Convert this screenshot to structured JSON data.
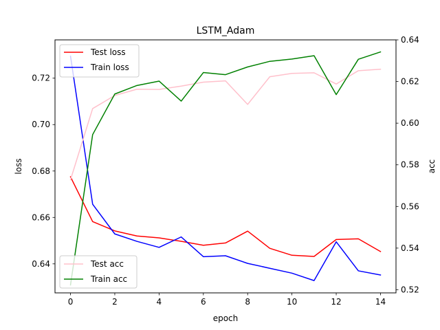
{
  "chart_data": {
    "type": "line",
    "title": "LSTM_Adam",
    "xlabel": "epoch",
    "ylabel": "loss",
    "y2label": "acc",
    "x": [
      0,
      1,
      2,
      3,
      4,
      5,
      6,
      7,
      8,
      9,
      10,
      11,
      12,
      13,
      14
    ],
    "xticks": [
      0,
      2,
      4,
      6,
      8,
      10,
      12,
      14
    ],
    "xticklabels": [
      "0",
      "2",
      "4",
      "6",
      "8",
      "10",
      "12",
      "14"
    ],
    "xlim": [
      -0.7,
      14.7
    ],
    "ylim": [
      0.6275,
      0.7365
    ],
    "yticks": [
      0.64,
      0.66,
      0.68,
      0.7,
      0.72
    ],
    "yticklabels": [
      "0.64",
      "0.66",
      "0.68",
      "0.70",
      "0.72"
    ],
    "y2lim": [
      0.5185,
      0.64
    ],
    "y2ticks": [
      0.52,
      0.54,
      0.56,
      0.58,
      0.6,
      0.62,
      0.64
    ],
    "y2ticklabels": [
      "0.52",
      "0.54",
      "0.56",
      "0.58",
      "0.60",
      "0.62",
      "0.64"
    ],
    "grid": false,
    "series": [
      {
        "name": "Test loss",
        "axis": "left",
        "color": "#ff0000",
        "values": [
          0.6775,
          0.6582,
          0.6542,
          0.652,
          0.6512,
          0.6497,
          0.648,
          0.649,
          0.6541,
          0.6467,
          0.6437,
          0.6432,
          0.6505,
          0.6508,
          0.6453
        ]
      },
      {
        "name": "Train loss",
        "axis": "left",
        "color": "#0000ff",
        "values": [
          0.7295,
          0.6657,
          0.6529,
          0.6497,
          0.6471,
          0.6516,
          0.6431,
          0.6435,
          0.6402,
          0.6381,
          0.636,
          0.6328,
          0.6495,
          0.637,
          0.6352
        ]
      },
      {
        "name": "Test acc",
        "axis": "right",
        "color": "#ffc0cb",
        "values": [
          0.5728,
          0.607,
          0.6133,
          0.6163,
          0.6162,
          0.6178,
          0.6197,
          0.6203,
          0.609,
          0.6223,
          0.6239,
          0.6242,
          0.6188,
          0.6252,
          0.6259
        ]
      },
      {
        "name": "Train acc",
        "axis": "right",
        "color": "#008000",
        "values": [
          0.5223,
          0.5945,
          0.614,
          0.6181,
          0.6202,
          0.6106,
          0.6243,
          0.6233,
          0.627,
          0.6297,
          0.6308,
          0.6324,
          0.6137,
          0.6307,
          0.6342
        ]
      }
    ],
    "legend_top": {
      "placement": "upper-left",
      "items": [
        "Test loss",
        "Train loss"
      ]
    },
    "legend_bottom": {
      "placement": "lower-left",
      "items": [
        "Test acc",
        "Train acc"
      ]
    }
  }
}
